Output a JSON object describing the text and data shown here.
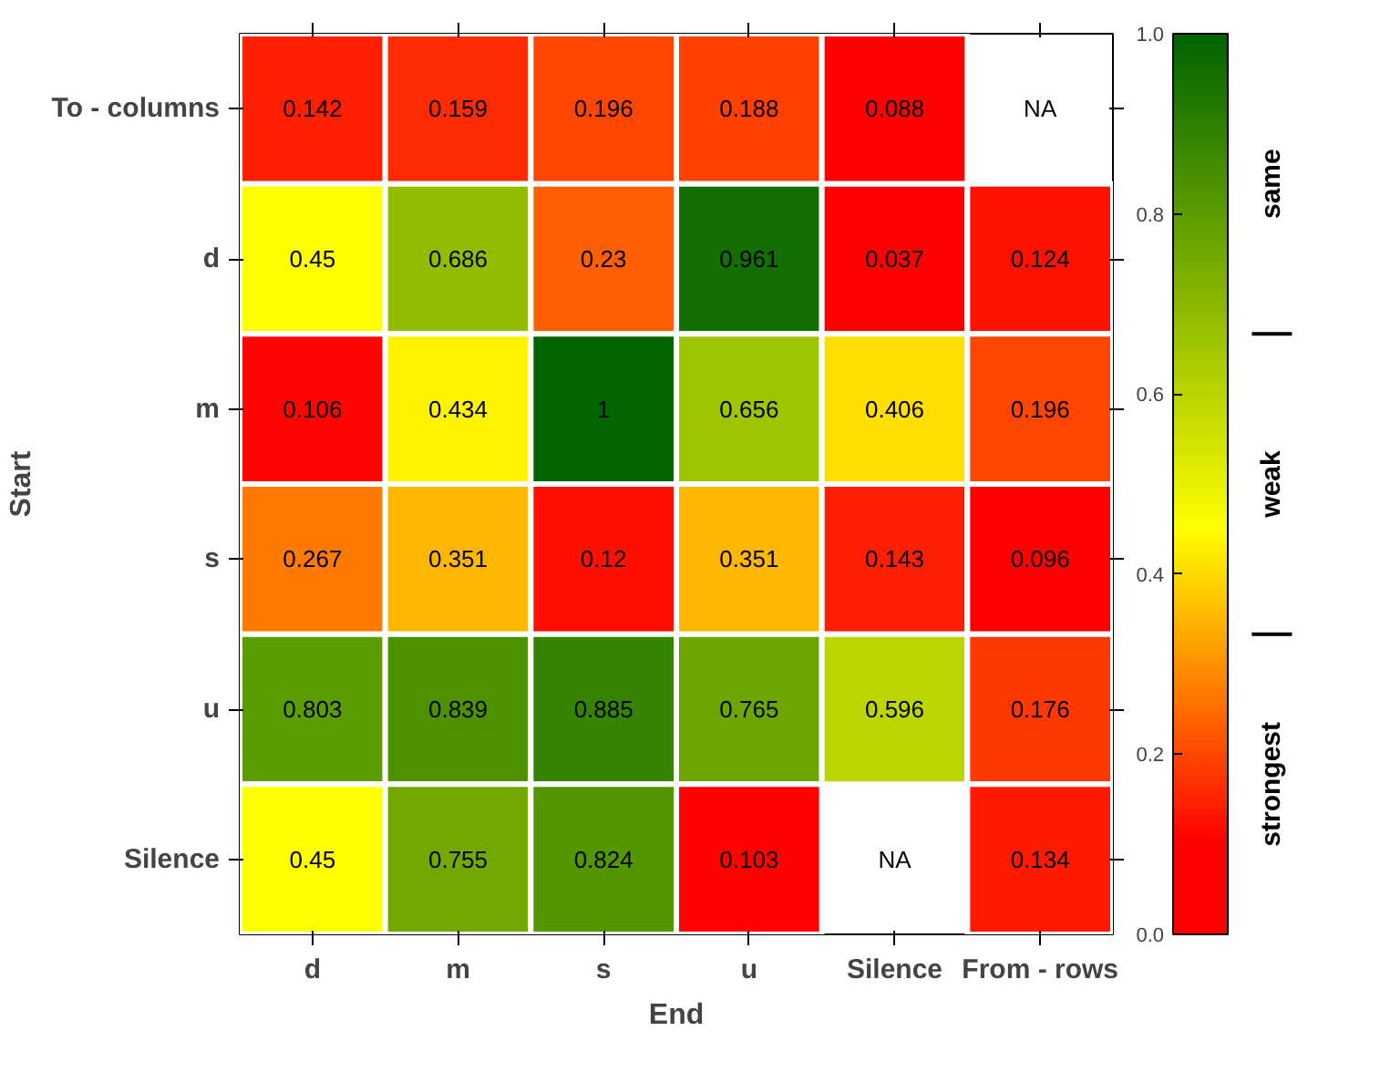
{
  "chart_data": {
    "type": "heatmap",
    "xlabel": "End",
    "ylabel": "Start",
    "categories": [
      "d",
      "m",
      "s",
      "u",
      "Silence",
      "From - rows"
    ],
    "y_categories": [
      "To - columns",
      "d",
      "m",
      "s",
      "u",
      "Silence"
    ],
    "cells": [
      [
        0.142,
        0.159,
        0.196,
        0.188,
        0.088,
        null
      ],
      [
        0.45,
        0.686,
        0.23,
        0.961,
        0.037,
        0.124
      ],
      [
        0.106,
        0.434,
        1,
        0.656,
        0.406,
        0.196
      ],
      [
        0.267,
        0.351,
        0.12,
        0.351,
        0.143,
        0.096
      ],
      [
        0.803,
        0.839,
        0.885,
        0.765,
        0.596,
        0.176
      ],
      [
        0.45,
        0.755,
        0.824,
        0.103,
        null,
        0.134
      ]
    ],
    "cell_labels": [
      [
        "0.142",
        "0.159",
        "0.196",
        "0.188",
        "0.088",
        "NA"
      ],
      [
        "0.45",
        "0.686",
        "0.23",
        "0.961",
        "0.037",
        "0.124"
      ],
      [
        "0.106",
        "0.434",
        "1",
        "0.656",
        "0.406",
        "0.196"
      ],
      [
        "0.267",
        "0.351",
        "0.12",
        "0.351",
        "0.143",
        "0.096"
      ],
      [
        "0.803",
        "0.839",
        "0.885",
        "0.765",
        "0.596",
        "0.176"
      ],
      [
        "0.45",
        "0.755",
        "0.824",
        "0.103",
        "NA",
        "0.134"
      ]
    ],
    "clim": [
      0,
      1
    ],
    "cticks": [
      {
        "value": 0,
        "label": "0.0"
      },
      {
        "value": 0.2,
        "label": "0.2"
      },
      {
        "value": 0.4,
        "label": "0.4"
      },
      {
        "value": 0.6,
        "label": "0.6"
      },
      {
        "value": 0.8,
        "label": "0.8"
      },
      {
        "value": 1,
        "label": "1.0"
      }
    ],
    "annotations": [
      "strongest",
      "weak",
      "same"
    ],
    "grid": false
  }
}
